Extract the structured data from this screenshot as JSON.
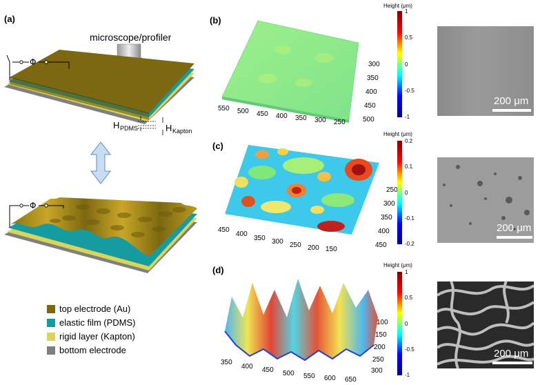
{
  "panels": {
    "a": "(a)",
    "b": "(b)",
    "c": "(c)",
    "d": "(d)"
  },
  "schematic": {
    "microscope_label": "microscope/profiler",
    "h_pdms_main": "H",
    "h_pdms_sub": "PDMS",
    "h_kapton_main": "H",
    "h_kapton_sub": "Kapton",
    "phi_symbol": "Φ"
  },
  "legend": [
    {
      "label": "top electrode (Au)",
      "color": "#7c6810"
    },
    {
      "label": "elastic film (PDMS)",
      "color": "#159ba0"
    },
    {
      "label": "rigid layer (Kapton)",
      "color": "#d9d45a"
    },
    {
      "label": "bottom electrode",
      "color": "#7f7f7f"
    }
  ],
  "colorbars": [
    {
      "title": "Height (μm)",
      "ticks": [
        "1",
        "0.5",
        "0",
        "-0.5",
        "-1"
      ]
    },
    {
      "title": "Height (μm)",
      "ticks": [
        "0.2",
        "0.1",
        "0",
        "-0.1",
        "-0.2"
      ]
    },
    {
      "title": "Height (μm)",
      "ticks": [
        "1",
        "0.5",
        "0",
        "-0.5",
        "-1"
      ]
    }
  ],
  "axes": {
    "b_x": [
      "550",
      "500",
      "450",
      "400",
      "350",
      "300",
      "250"
    ],
    "b_y": [
      "300",
      "350",
      "400",
      "450",
      "500"
    ],
    "c_x": [
      "450",
      "400",
      "350",
      "300",
      "250",
      "200",
      "150"
    ],
    "c_y": [
      "250",
      "300",
      "350",
      "400",
      "450"
    ],
    "d_x": [
      "350",
      "400",
      "450",
      "500",
      "550",
      "600",
      "650"
    ],
    "d_y": [
      "100",
      "150",
      "200",
      "250",
      "300"
    ]
  },
  "scalebars": [
    "200 μm",
    "200 μm",
    "200 μm"
  ]
}
